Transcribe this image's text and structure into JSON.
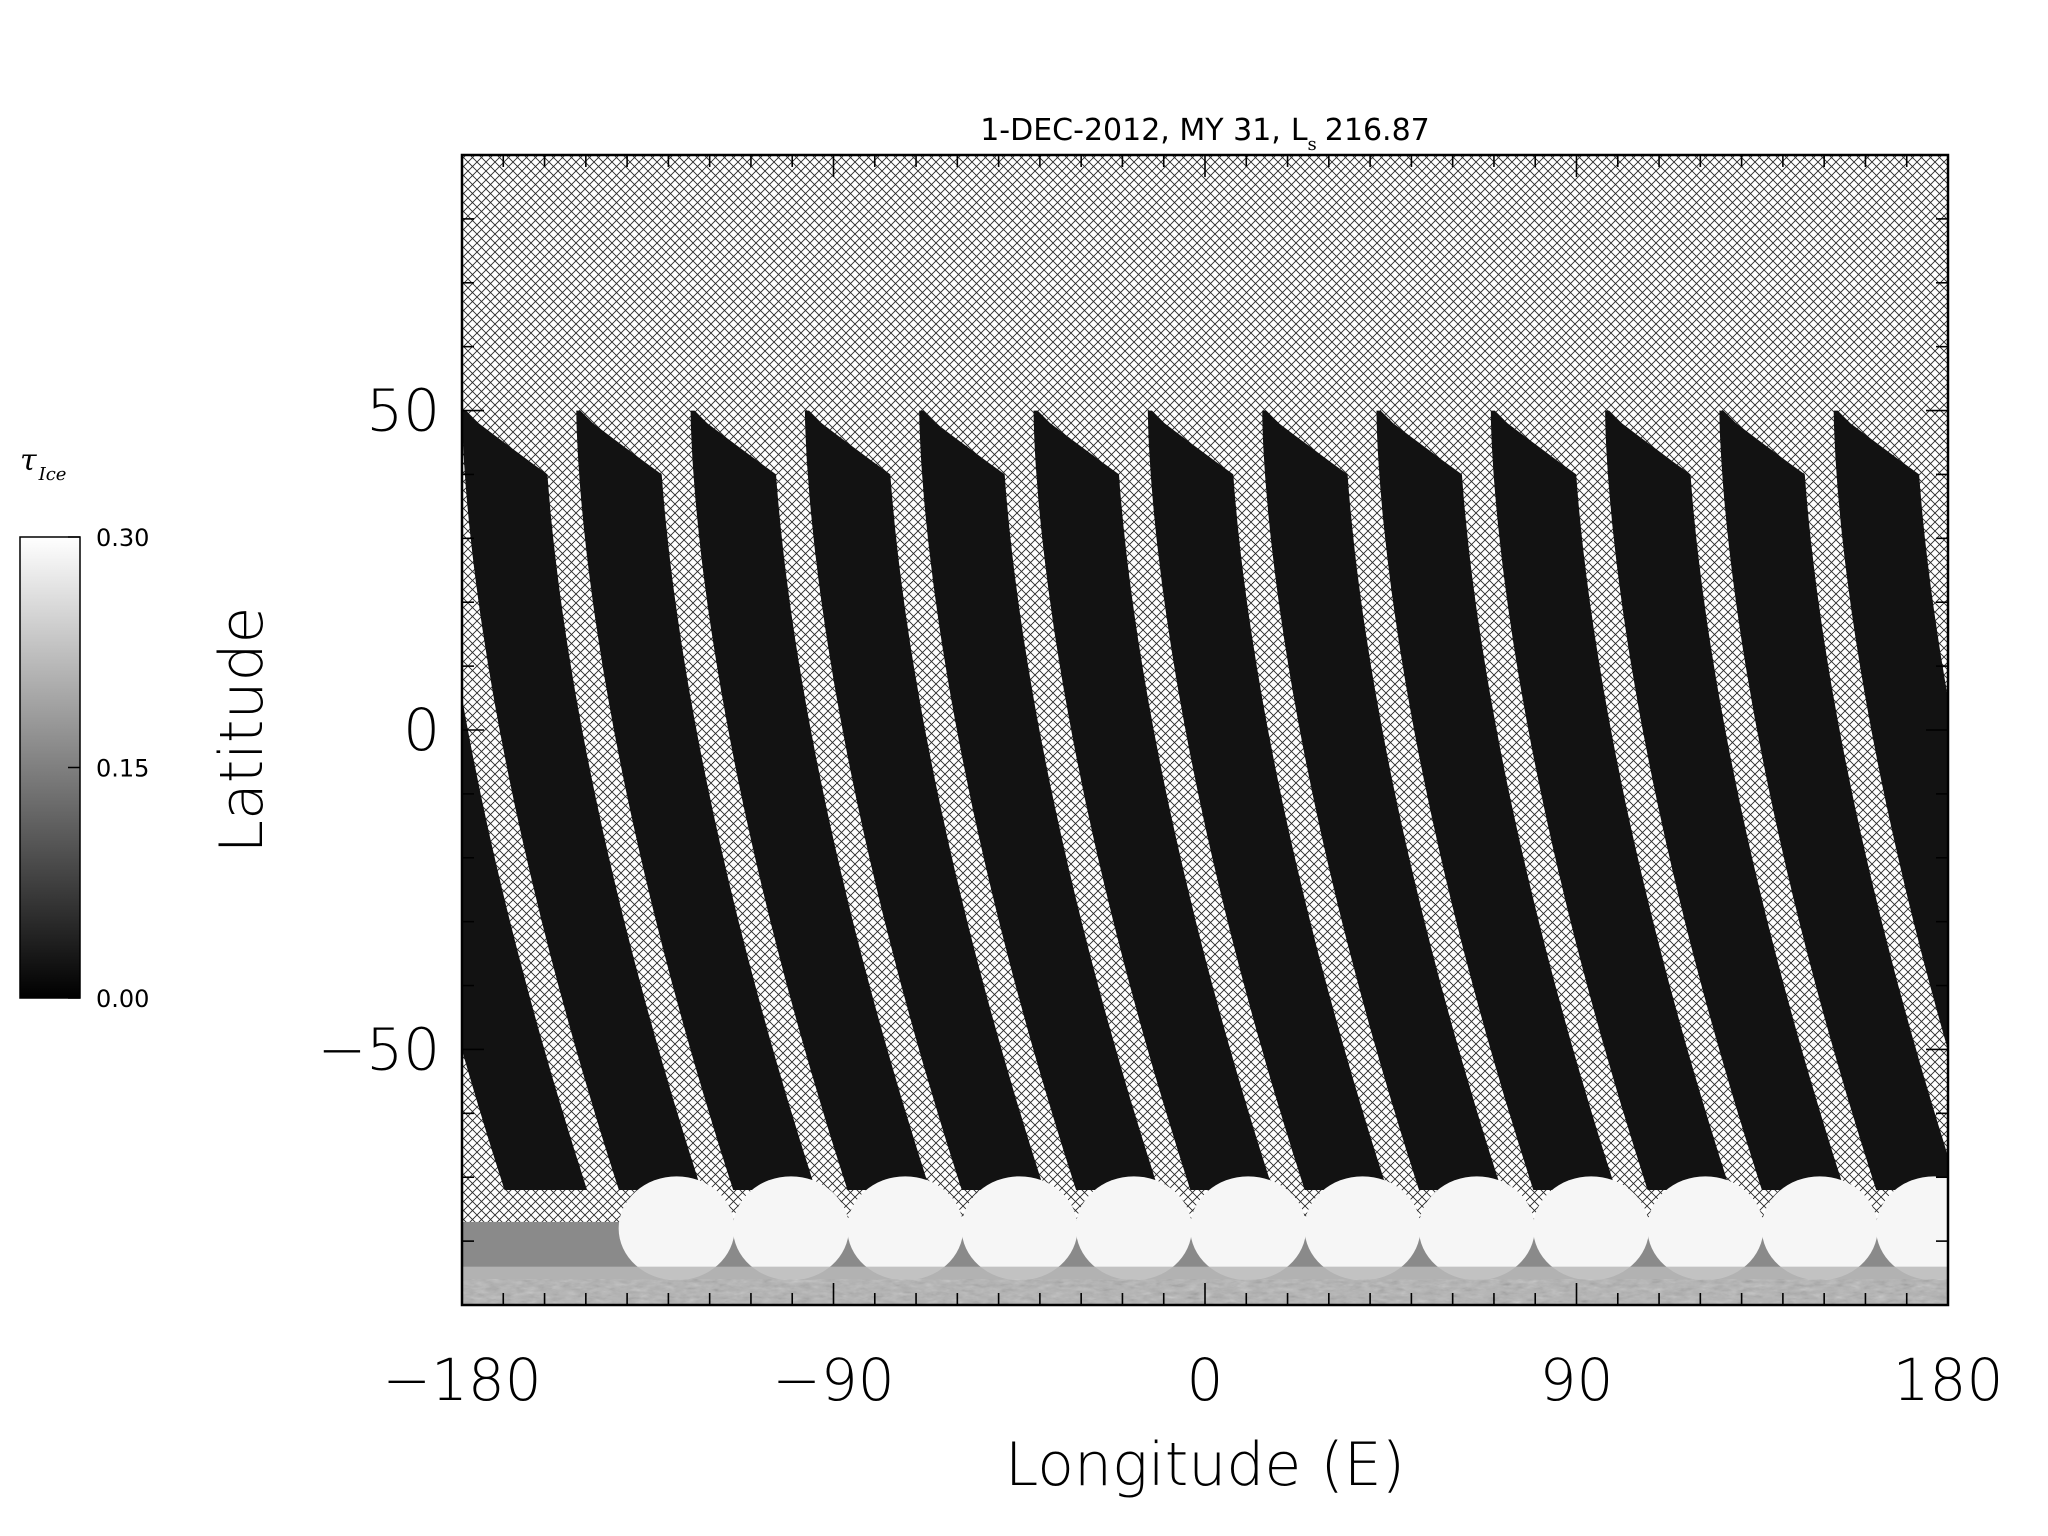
{
  "title": {
    "prefix": "1-DEC-2012, MY 31,",
    "ls_main": "L",
    "ls_sub": "s",
    "ls_value": "216.87"
  },
  "x_axis": {
    "label": "Longitude (E)",
    "ticks": [
      "-180",
      "-90",
      "0",
      "90",
      "180"
    ],
    "tick_values": [
      -180,
      -90,
      0,
      90,
      180
    ],
    "range": [
      -180,
      180
    ]
  },
  "y_axis": {
    "label": "Latitude",
    "ticks": [
      "50",
      "0",
      "-50"
    ],
    "tick_values": [
      50,
      0,
      -50
    ],
    "range": [
      -90,
      90
    ]
  },
  "colorbar": {
    "label_main": "τ",
    "label_sub": "Ice",
    "ticks": [
      "0.30",
      "0.15",
      "0.00"
    ],
    "tick_values": [
      0.3,
      0.15,
      0.0
    ],
    "range": [
      0.0,
      0.3
    ],
    "colormap": "grayscale",
    "color_low": "#000000",
    "color_high": "#ffffff"
  },
  "map": {
    "no_data_fill": "cross-hatch",
    "swath_count": 13,
    "swath_color": "#121212",
    "polar_cap_color": "#f6f6f6",
    "hatch_color": "#2a2a2a",
    "swath_lat_range": [
      -72,
      50
    ]
  }
}
